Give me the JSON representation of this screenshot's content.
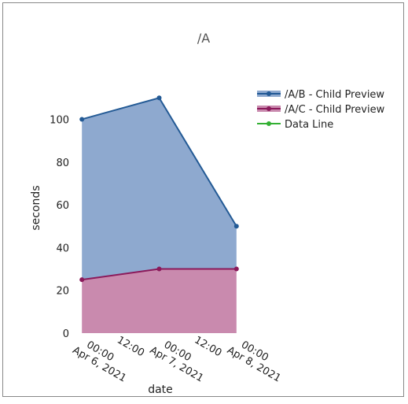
{
  "chart_data": {
    "type": "stacked-area",
    "title": "/A",
    "x_label": "date",
    "y_label": "seconds",
    "x": [
      "2021-04-06T00:00",
      "2021-04-07T00:00",
      "2021-04-08T00:00"
    ],
    "series": [
      {
        "name": "/A/C - Child Preview",
        "color": "#8b1a5b",
        "fill": "#c98aae",
        "values": [
          25,
          30,
          30
        ]
      },
      {
        "name": "/A/B - Child Preview",
        "color": "#235a95",
        "fill": "#8ea9cf",
        "values": [
          75,
          80,
          20
        ]
      },
      {
        "name": "Data Line",
        "color": "#33b033",
        "fill": "none",
        "values": [
          null,
          null,
          null
        ]
      }
    ],
    "legend_order": [
      1,
      0,
      2
    ],
    "xlim": [
      "2021-04-05T22:00",
      "2021-04-08T02:00"
    ],
    "xticks": [
      {
        "value": "2021-04-06T00:00",
        "label": "00:00\nApr 6, 2021"
      },
      {
        "value": "2021-04-06T12:00",
        "label": "12:00"
      },
      {
        "value": "2021-04-07T00:00",
        "label": "00:00\nApr 7, 2021"
      },
      {
        "value": "2021-04-07T12:00",
        "label": "12:00"
      },
      {
        "value": "2021-04-08T00:00",
        "label": "00:00\nApr 8, 2021"
      }
    ],
    "ylim": [
      0,
      116
    ],
    "yticks": [
      0,
      20,
      40,
      60,
      80,
      100
    ],
    "legend": "right"
  }
}
